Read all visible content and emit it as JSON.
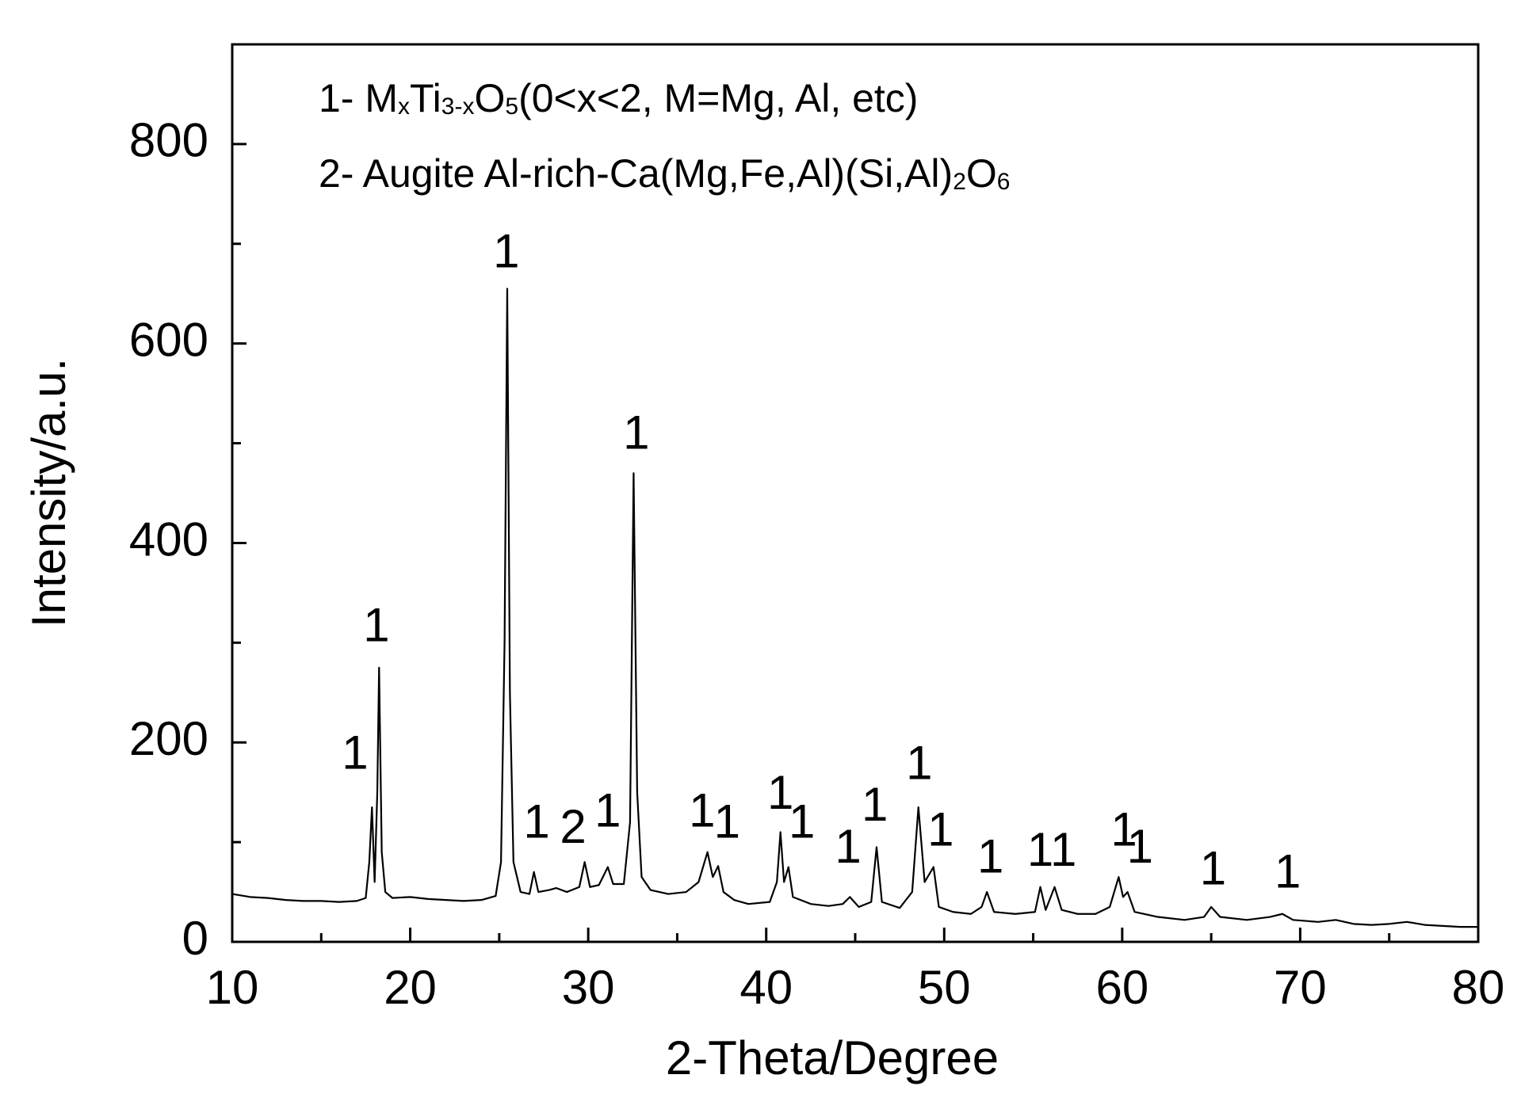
{
  "chart_data": {
    "type": "line",
    "xlabel": "2-Theta/Degree",
    "ylabel": "Intensity/a.u.",
    "xlim": [
      10,
      80
    ],
    "ylim": [
      0,
      900
    ],
    "xticks": [
      10,
      20,
      30,
      40,
      50,
      60,
      70,
      80
    ],
    "yticks": [
      0,
      200,
      400,
      600,
      800
    ],
    "xminor": [
      15,
      25,
      35,
      45,
      55,
      65,
      75
    ],
    "yminor": [
      100,
      300,
      500,
      700
    ],
    "legend_text": [
      [
        {
          "text": "1- M"
        },
        {
          "text": "x",
          "sub": true
        },
        {
          "text": "Ti"
        },
        {
          "text": "3-x",
          "sub": true
        },
        {
          "text": "O"
        },
        {
          "text": "5",
          "sub": true
        },
        {
          "text": "(0<x<2, M=Mg, Al, etc)"
        }
      ],
      [
        {
          "text": "2- Augite Al-rich-Ca(Mg,Fe,Al)(Si,Al)"
        },
        {
          "text": "2",
          "sub": true
        },
        {
          "text": "O"
        },
        {
          "text": "6",
          "sub": true
        }
      ]
    ],
    "annotations": [
      {
        "text": "1",
        "x": 16.9,
        "y": 186
      },
      {
        "text": "1",
        "x": 18.1,
        "y": 314
      },
      {
        "text": "1",
        "x": 25.4,
        "y": 689
      },
      {
        "text": "1",
        "x": 27.1,
        "y": 117
      },
      {
        "text": "2",
        "x": 29.15,
        "y": 112
      },
      {
        "text": "1",
        "x": 31.1,
        "y": 128
      },
      {
        "text": "1",
        "x": 32.7,
        "y": 507
      },
      {
        "text": "1",
        "x": 36.4,
        "y": 128
      },
      {
        "text": "1",
        "x": 37.8,
        "y": 117
      },
      {
        "text": "1",
        "x": 40.8,
        "y": 146
      },
      {
        "text": "1",
        "x": 42.0,
        "y": 117
      },
      {
        "text": "1",
        "x": 44.6,
        "y": 92
      },
      {
        "text": "1",
        "x": 46.1,
        "y": 134
      },
      {
        "text": "1",
        "x": 48.6,
        "y": 176
      },
      {
        "text": "1",
        "x": 49.8,
        "y": 109
      },
      {
        "text": "1",
        "x": 52.6,
        "y": 82
      },
      {
        "text": "1",
        "x": 55.4,
        "y": 89
      },
      {
        "text": "1",
        "x": 56.7,
        "y": 89
      },
      {
        "text": "1",
        "x": 60.1,
        "y": 109
      },
      {
        "text": "1",
        "x": 61.0,
        "y": 92
      },
      {
        "text": "1",
        "x": 65.1,
        "y": 70
      },
      {
        "text": "1",
        "x": 69.3,
        "y": 67
      }
    ],
    "x": [
      10,
      11,
      12,
      13,
      14,
      15,
      16,
      17,
      17.5,
      17.7,
      17.85,
      18.0,
      18.15,
      18.25,
      18.4,
      18.6,
      19,
      20,
      21,
      22,
      23,
      24,
      24.8,
      25.1,
      25.3,
      25.45,
      25.6,
      25.8,
      26.2,
      26.7,
      26.95,
      27.2,
      27.8,
      28.2,
      28.8,
      29.5,
      29.8,
      30.1,
      30.6,
      31.1,
      31.4,
      32.0,
      32.35,
      32.55,
      32.75,
      33.0,
      33.5,
      34.5,
      35.5,
      36.2,
      36.7,
      37.0,
      37.3,
      37.6,
      38.2,
      39,
      40.2,
      40.6,
      40.8,
      41.0,
      41.25,
      41.5,
      42.5,
      43.5,
      44.3,
      44.7,
      45.2,
      45.9,
      46.2,
      46.5,
      47.5,
      48.2,
      48.55,
      48.9,
      49.4,
      49.7,
      50.5,
      51.5,
      52.1,
      52.4,
      52.8,
      54,
      55.1,
      55.4,
      55.7,
      56.2,
      56.6,
      57.5,
      58.5,
      59.3,
      59.8,
      60.05,
      60.3,
      60.7,
      62,
      63.5,
      64.6,
      65.0,
      65.5,
      67,
      68.3,
      69.0,
      69.6,
      71,
      72,
      73,
      74,
      75,
      76,
      77,
      78,
      79,
      80
    ],
    "series": [
      {
        "color": "#000000",
        "values": [
          48,
          45,
          44,
          42,
          41,
          41,
          40,
          41,
          44,
          80,
          135,
          60,
          150,
          275,
          90,
          50,
          44,
          45,
          43,
          42,
          41,
          42,
          46,
          80,
          300,
          655,
          250,
          80,
          50,
          48,
          70,
          50,
          52,
          54,
          50,
          55,
          80,
          55,
          57,
          75,
          58,
          58,
          120,
          470,
          150,
          65,
          52,
          48,
          50,
          60,
          90,
          65,
          76,
          50,
          42,
          38,
          40,
          60,
          110,
          60,
          75,
          45,
          38,
          36,
          38,
          45,
          35,
          40,
          95,
          40,
          34,
          50,
          135,
          60,
          75,
          35,
          30,
          28,
          35,
          50,
          30,
          28,
          30,
          55,
          32,
          55,
          32,
          28,
          28,
          35,
          65,
          45,
          50,
          30,
          25,
          22,
          25,
          35,
          25,
          22,
          25,
          28,
          22,
          20,
          22,
          18,
          17,
          18,
          20,
          17,
          16,
          15,
          15
        ]
      }
    ]
  }
}
